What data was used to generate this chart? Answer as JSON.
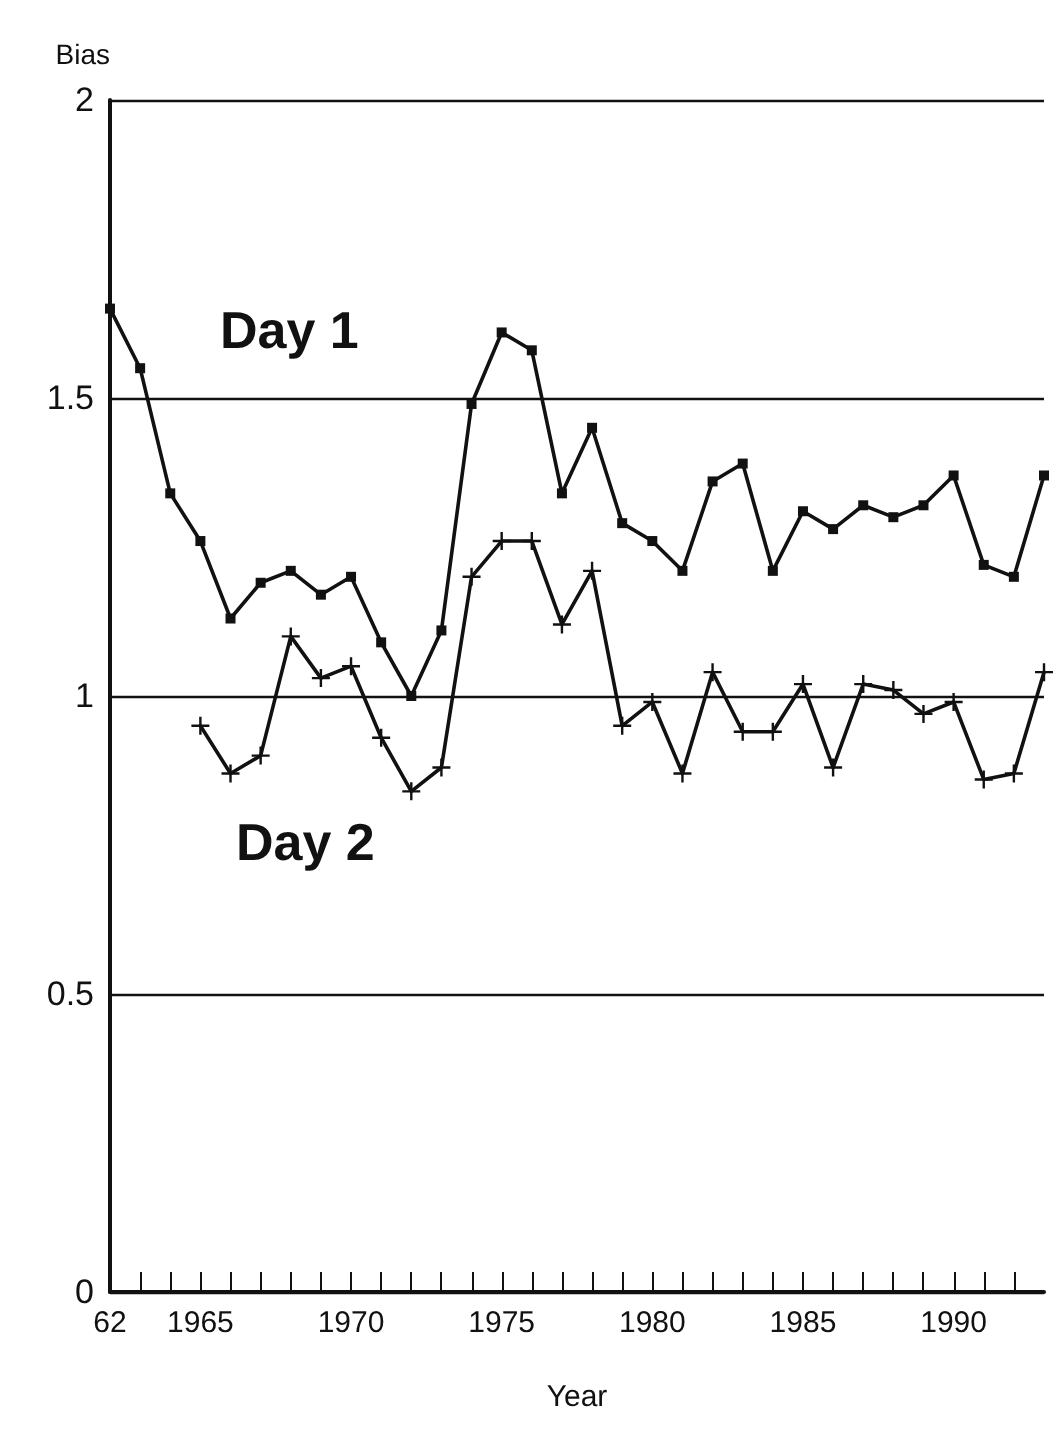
{
  "chart_data": {
    "type": "line",
    "xlabel": "Year",
    "ylabel": "Bias",
    "x": [
      1962,
      1963,
      1964,
      1965,
      1966,
      1967,
      1968,
      1969,
      1970,
      1971,
      1972,
      1973,
      1974,
      1975,
      1976,
      1977,
      1978,
      1979,
      1980,
      1981,
      1982,
      1983,
      1984,
      1985,
      1986,
      1987,
      1988,
      1989,
      1990,
      1991,
      1992,
      1993
    ],
    "series": [
      {
        "name": "Day 1",
        "color": "#111111",
        "marker": "square",
        "values": [
          1.65,
          1.55,
          1.34,
          1.26,
          1.13,
          1.19,
          1.21,
          1.17,
          1.2,
          1.09,
          1.0,
          1.11,
          1.49,
          1.61,
          1.58,
          1.34,
          1.45,
          1.29,
          1.26,
          1.21,
          1.36,
          1.39,
          1.21,
          1.31,
          1.28,
          1.32,
          1.3,
          1.32,
          1.37,
          1.22,
          1.2,
          1.37
        ]
      },
      {
        "name": "Day 2",
        "color": "#111111",
        "marker": "cross",
        "values": [
          null,
          null,
          null,
          0.95,
          0.87,
          0.9,
          1.1,
          1.03,
          1.05,
          0.93,
          0.84,
          0.88,
          1.2,
          1.26,
          1.26,
          1.12,
          1.21,
          0.95,
          0.99,
          0.87,
          1.04,
          0.94,
          0.94,
          1.02,
          0.88,
          1.02,
          1.01,
          0.97,
          0.99,
          0.86,
          0.87,
          1.04
        ]
      }
    ],
    "xlim": [
      1962,
      1993
    ],
    "xticks": [
      {
        "value": 1962,
        "label": "62"
      },
      {
        "value": 1963,
        "label": null
      },
      {
        "value": 1964,
        "label": null
      },
      1965,
      {
        "value": 1966,
        "label": null
      },
      {
        "value": 1967,
        "label": null
      },
      {
        "value": 1968,
        "label": null
      },
      {
        "value": 1969,
        "label": null
      },
      1970,
      {
        "value": 1971,
        "label": null
      },
      {
        "value": 1972,
        "label": null
      },
      {
        "value": 1973,
        "label": null
      },
      {
        "value": 1974,
        "label": null
      },
      1975,
      {
        "value": 1976,
        "label": null
      },
      {
        "value": 1977,
        "label": null
      },
      {
        "value": 1978,
        "label": null
      },
      {
        "value": 1979,
        "label": null
      },
      1980,
      {
        "value": 1981,
        "label": null
      },
      {
        "value": 1982,
        "label": null
      },
      {
        "value": 1983,
        "label": null
      },
      {
        "value": 1984,
        "label": null
      },
      1985,
      {
        "value": 1986,
        "label": null
      },
      {
        "value": 1987,
        "label": null
      },
      {
        "value": 1988,
        "label": null
      },
      {
        "value": 1989,
        "label": null
      },
      1990,
      {
        "value": 1991,
        "label": null
      },
      {
        "value": 1992,
        "label": null
      }
    ],
    "ylim": [
      0,
      2
    ],
    "yticks": [
      0,
      0.5,
      1,
      1.5,
      2
    ],
    "grid": "y",
    "legend": false,
    "line_style": "solid"
  }
}
